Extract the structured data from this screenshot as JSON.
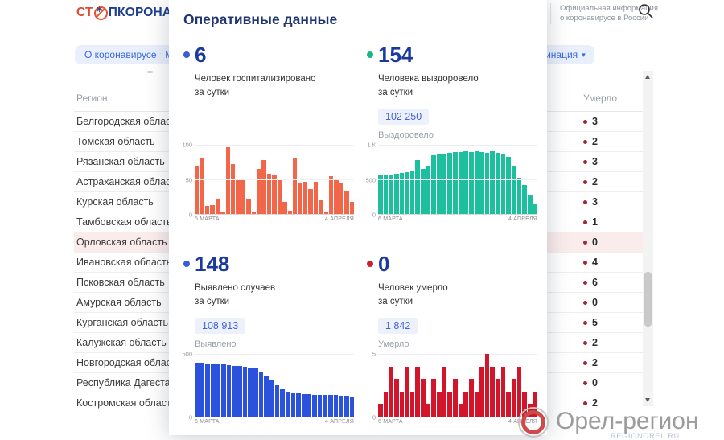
{
  "header": {
    "logo_prefix": "СТ",
    "logo_suffix": "ПКОРОНАВИ",
    "official_info_line1": "Официальная информация",
    "official_info_line2": "о коронавирусе в России",
    "tabs": [
      {
        "label": "О коронавирусе"
      },
      {
        "label": "Меры"
      },
      {
        "label": "Вакцинация"
      }
    ]
  },
  "table": {
    "region_header": "Регион",
    "deaths_header": "Умерло",
    "deaths_dot_color": "#a32638",
    "highlight_color": "#fbecec",
    "rows": [
      {
        "region": "Белгородская область",
        "deaths": "3",
        "highlight": false
      },
      {
        "region": "Томская область",
        "deaths": "2",
        "highlight": false
      },
      {
        "region": "Рязанская область",
        "deaths": "3",
        "highlight": false
      },
      {
        "region": "Астраханская область",
        "deaths": "2",
        "highlight": false
      },
      {
        "region": "Курская область",
        "deaths": "3",
        "highlight": false
      },
      {
        "region": "Тамбовская область",
        "deaths": "1",
        "highlight": false
      },
      {
        "region": "Орловская область",
        "deaths": "0",
        "highlight": true
      },
      {
        "region": "Ивановская область",
        "deaths": "4",
        "highlight": false
      },
      {
        "region": "Псковская область",
        "deaths": "6",
        "highlight": false
      },
      {
        "region": "Амурская область",
        "deaths": "0",
        "highlight": false
      },
      {
        "region": "Курганская область",
        "deaths": "5",
        "highlight": false
      },
      {
        "region": "Калужская область",
        "deaths": "2",
        "highlight": false
      },
      {
        "region": "Новгородская область",
        "deaths": "2",
        "highlight": false
      },
      {
        "region": "Республика Дагестан",
        "deaths": "0",
        "highlight": false
      },
      {
        "region": "Костромская область",
        "deaths": "2",
        "highlight": false
      }
    ]
  },
  "modal": {
    "title": "Оперативные данные",
    "stats": [
      {
        "value": "6",
        "dot_color": "#3b5bdb",
        "label_line1": "Человек госпитализировано",
        "label_line2": "за сутки"
      },
      {
        "value": "154",
        "dot_color": "#12b886",
        "label_line1": "Человека выздоровело",
        "label_line2": "за сутки",
        "total": "102 250",
        "total_label": "Выздоровело"
      },
      {
        "value": "148",
        "dot_color": "#3b5bdb",
        "label_line1": "Выявлено случаев",
        "label_line2": "за сутки",
        "total": "108 913",
        "total_label": "Выявлено"
      },
      {
        "value": "0",
        "dot_color": "#c9232e",
        "label_line1": "Человек умерло",
        "label_line2": "за сутки",
        "total": "1 842",
        "total_label": "Умерло"
      }
    ]
  },
  "chart_data": [
    {
      "type": "bar",
      "title": "Госпитализировано за сутки",
      "color": "#f2674a",
      "ymax": 100,
      "y_ticks": [
        "100",
        "50",
        "0"
      ],
      "x_start": "5 МАРТА",
      "x_end": "4 АПРЕЛЯ",
      "values": [
        70,
        80,
        12,
        13,
        21,
        3,
        97,
        72,
        50,
        50,
        22,
        2,
        65,
        78,
        58,
        57,
        49,
        17,
        5,
        80,
        45,
        46,
        36,
        46,
        20,
        2,
        55,
        51,
        44,
        33,
        17
      ]
    },
    {
      "type": "bar",
      "title": "Выздоровело за сутки",
      "color": "#1cbf9e",
      "ymax": 1000,
      "y_ticks": [
        "1 К",
        "500",
        "0"
      ],
      "x_start": "6 МАРТА",
      "x_end": "4 АПРЕЛЯ",
      "values": [
        570,
        570,
        575,
        580,
        590,
        605,
        615,
        780,
        650,
        700,
        845,
        860,
        870,
        885,
        900,
        890,
        905,
        895,
        910,
        895,
        885,
        905,
        880,
        860,
        830,
        700,
        520,
        420,
        280,
        150
      ]
    },
    {
      "type": "bar",
      "title": "Выявлено случаев за сутки",
      "color": "#2b52dd",
      "ymax": 500,
      "y_ticks": [
        "500",
        "0"
      ],
      "x_start": "6 МАРТА",
      "x_end": "4 АПРЕЛЯ",
      "values": [
        430,
        428,
        424,
        420,
        417,
        414,
        410,
        406,
        402,
        398,
        394,
        388,
        360,
        330,
        298,
        252,
        215,
        196,
        188,
        183,
        180,
        178,
        176,
        175,
        173,
        172,
        170,
        168,
        165,
        160
      ]
    },
    {
      "type": "bar",
      "title": "Умерло за сутки",
      "color": "#d2152b",
      "ymax": 5,
      "y_ticks": [
        "5",
        "0"
      ],
      "x_start": "6 МАРТА",
      "x_end": "4 АПРЕЛЯ",
      "values": [
        1,
        2,
        4,
        3,
        2,
        4,
        2,
        4,
        3,
        1,
        3,
        2,
        4,
        2,
        3,
        1,
        2,
        3,
        2,
        4,
        5,
        4,
        3,
        4,
        2,
        3,
        4,
        2,
        1,
        2
      ]
    }
  ],
  "watermark": {
    "title": "Орел-регион",
    "subtitle": "REGIONOREL.RU"
  },
  "colors": {
    "accent_blue": "#1b3a9e",
    "title_blue": "#21366f",
    "tab_bg": "#e9effc",
    "tab_text": "#3a6ae0",
    "badge_bg": "#edf1fb",
    "badge_text": "#4263d6"
  }
}
